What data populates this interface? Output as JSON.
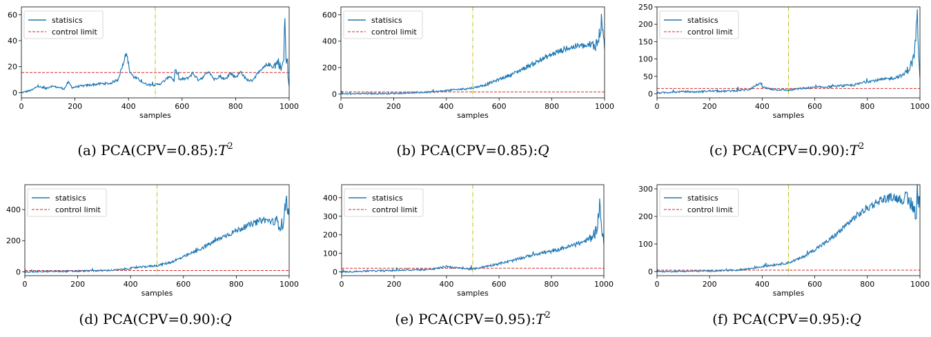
{
  "legend": {
    "stat_label": "statisics",
    "limit_label": "control limit"
  },
  "colors": {
    "stat": "#1f77b4",
    "limit": "#d62728",
    "fault": "#bcbd22"
  },
  "chart_data": [
    {
      "id": "a",
      "type": "line",
      "caption": "(a) PCA(CPV=0.85):",
      "caption_sym": "T",
      "caption_sup": "2",
      "xlabel": "samples",
      "ylabel": "",
      "xlim": [
        0,
        1000
      ],
      "ylim": [
        -4,
        66
      ],
      "xticks": [
        0,
        200,
        400,
        600,
        800,
        1000
      ],
      "yticks": [
        0,
        20,
        40,
        60
      ],
      "control_limit": 15.5,
      "fault_at": 500,
      "series": [
        {
          "name": "statisics",
          "shape": "a",
          "x": [
            0,
            40,
            60,
            90,
            110,
            140,
            160,
            175,
            190,
            220,
            260,
            300,
            330,
            360,
            380,
            388,
            395,
            405,
            420,
            440,
            460,
            480,
            500,
            520,
            540,
            555,
            570,
            575,
            590,
            620,
            640,
            660,
            680,
            700,
            720,
            740,
            760,
            780,
            800,
            820,
            840,
            860,
            880,
            900,
            920,
            940,
            960,
            970,
            980,
            984,
            987,
            990,
            993,
            996,
            1000
          ],
          "y": [
            0,
            2,
            5,
            3,
            5,
            4,
            3,
            8,
            4,
            5,
            6,
            7,
            7,
            10,
            22,
            30,
            28,
            16,
            12,
            10,
            7,
            6,
            6,
            7,
            10,
            13,
            9,
            18,
            10,
            11,
            15,
            10,
            12,
            17,
            10,
            13,
            10,
            15,
            12,
            16,
            10,
            9,
            14,
            18,
            22,
            20,
            24,
            18,
            25,
            62,
            30,
            22,
            30,
            10,
            6
          ]
        }
      ]
    },
    {
      "id": "b",
      "type": "line",
      "caption": "(b) PCA(CPV=0.85):",
      "caption_sym": "Q",
      "caption_sup": "",
      "xlabel": "samples",
      "ylabel": "",
      "xlim": [
        0,
        1000
      ],
      "ylim": [
        -30,
        660
      ],
      "xticks": [
        0,
        200,
        400,
        600,
        800,
        1000
      ],
      "yticks": [
        0,
        200,
        400,
        600
      ],
      "control_limit": 15,
      "fault_at": 500,
      "series": [
        {
          "name": "statisics",
          "shape": "rise",
          "x": [
            0,
            100,
            200,
            300,
            350,
            400,
            450,
            500,
            550,
            600,
            650,
            700,
            750,
            800,
            850,
            900,
            950,
            975,
            985,
            990,
            995,
            1000
          ],
          "y": [
            0,
            2,
            4,
            10,
            15,
            25,
            35,
            45,
            70,
            110,
            150,
            200,
            250,
            300,
            340,
            365,
            360,
            390,
            500,
            600,
            400,
            380
          ]
        }
      ]
    },
    {
      "id": "c",
      "type": "line",
      "caption": "(c) PCA(CPV=0.90):",
      "caption_sym": "T",
      "caption_sup": "2",
      "xlabel": "samples",
      "ylabel": "",
      "xlim": [
        0,
        1000
      ],
      "ylim": [
        -12,
        250
      ],
      "xticks": [
        0,
        200,
        400,
        600,
        800,
        1000
      ],
      "yticks": [
        0,
        50,
        100,
        150,
        200,
        250
      ],
      "control_limit": 15,
      "fault_at": 500,
      "series": [
        {
          "name": "statisics",
          "shape": "c",
          "x": [
            0,
            50,
            100,
            150,
            200,
            250,
            300,
            350,
            390,
            400,
            420,
            450,
            500,
            550,
            600,
            650,
            700,
            750,
            800,
            850,
            900,
            940,
            960,
            970,
            980,
            985,
            990,
            995,
            1000
          ],
          "y": [
            2,
            4,
            6,
            5,
            8,
            7,
            9,
            12,
            30,
            20,
            15,
            12,
            10,
            15,
            18,
            20,
            22,
            25,
            35,
            40,
            45,
            55,
            75,
            90,
            120,
            180,
            228,
            100,
            40
          ]
        }
      ]
    },
    {
      "id": "d",
      "type": "line",
      "caption": "(d) PCA(CPV=0.90):",
      "caption_sym": "Q",
      "caption_sup": "",
      "xlabel": "samples",
      "ylabel": "",
      "xlim": [
        0,
        1000
      ],
      "ylim": [
        -25,
        560
      ],
      "xticks": [
        0,
        200,
        400,
        600,
        800,
        1000
      ],
      "yticks": [
        0,
        200,
        400
      ],
      "control_limit": 8,
      "fault_at": 500,
      "series": [
        {
          "name": "statisics",
          "shape": "rise",
          "x": [
            0,
            100,
            200,
            300,
            350,
            400,
            450,
            500,
            550,
            600,
            650,
            700,
            750,
            800,
            850,
            900,
            950,
            975,
            985,
            990,
            995,
            1000
          ],
          "y": [
            0,
            2,
            4,
            8,
            12,
            22,
            32,
            40,
            60,
            95,
            135,
            180,
            225,
            265,
            300,
            335,
            320,
            300,
            400,
            520,
            380,
            340
          ]
        }
      ]
    },
    {
      "id": "e",
      "type": "line",
      "caption": "(e) PCA(CPV=0.95):",
      "caption_sym": "T",
      "caption_sup": "2",
      "xlabel": "samples",
      "ylabel": "",
      "xlim": [
        0,
        1000
      ],
      "ylim": [
        -20,
        470
      ],
      "xticks": [
        0,
        200,
        400,
        600,
        800,
        1000
      ],
      "yticks": [
        0,
        100,
        200,
        300,
        400
      ],
      "control_limit": 20,
      "fault_at": 500,
      "series": [
        {
          "name": "statisics",
          "shape": "e",
          "x": [
            0,
            100,
            200,
            300,
            350,
            400,
            450,
            500,
            550,
            600,
            650,
            700,
            750,
            800,
            850,
            900,
            950,
            970,
            980,
            985,
            990,
            995,
            1000
          ],
          "y": [
            0,
            5,
            8,
            12,
            15,
            30,
            20,
            15,
            30,
            45,
            60,
            80,
            100,
            110,
            130,
            150,
            180,
            220,
            300,
            430,
            250,
            200,
            160
          ]
        }
      ]
    },
    {
      "id": "f",
      "type": "line",
      "caption": "(f) PCA(CPV=0.95):",
      "caption_sym": "Q",
      "caption_sup": "",
      "xlabel": "samples",
      "ylabel": "",
      "xlim": [
        0,
        1000
      ],
      "ylim": [
        -15,
        315
      ],
      "xticks": [
        0,
        200,
        400,
        600,
        800,
        1000
      ],
      "yticks": [
        0,
        100,
        200,
        300
      ],
      "control_limit": 5,
      "fault_at": 500,
      "series": [
        {
          "name": "statisics",
          "shape": "f",
          "x": [
            0,
            100,
            200,
            300,
            350,
            400,
            450,
            500,
            550,
            600,
            650,
            700,
            750,
            800,
            850,
            900,
            950,
            975,
            985,
            990,
            995,
            1000
          ],
          "y": [
            0,
            1,
            2,
            5,
            10,
            18,
            25,
            32,
            50,
            80,
            110,
            150,
            195,
            230,
            260,
            270,
            255,
            240,
            200,
            300,
            250,
            260
          ]
        }
      ]
    }
  ]
}
